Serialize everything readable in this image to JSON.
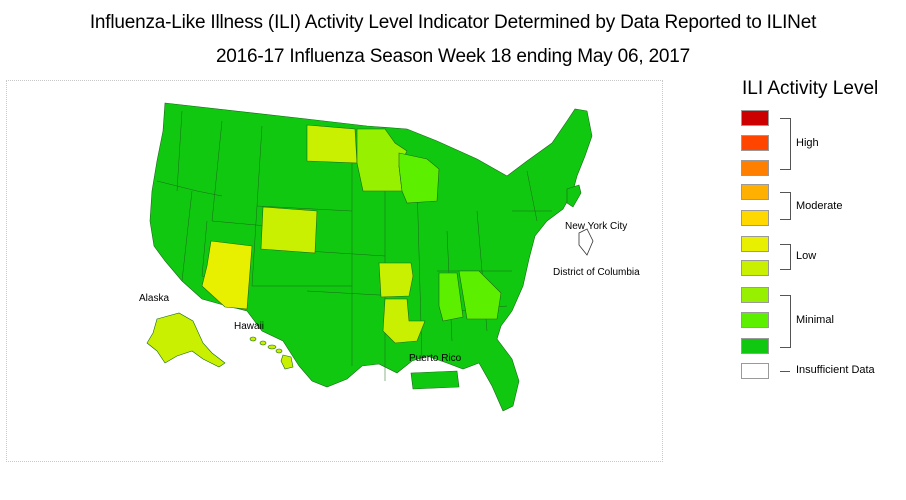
{
  "title_line1": "Influenza-Like Illness (ILI) Activity Level Indicator Determined by Data Reported to ILINet",
  "title_line2": "2016-17 Influenza Season Week 18 ending May 06, 2017",
  "legend": {
    "title": "ILI Activity Level",
    "levels": [
      {
        "level": 10,
        "color": "#cc0000"
      },
      {
        "level": 9,
        "color": "#ff4500"
      },
      {
        "level": 8,
        "color": "#ff8000"
      },
      {
        "level": 7,
        "color": "#ffb000"
      },
      {
        "level": 6,
        "color": "#ffd800"
      },
      {
        "level": 5,
        "color": "#e8f000"
      },
      {
        "level": 4,
        "color": "#c8f000"
      },
      {
        "level": 3,
        "color": "#96f000"
      },
      {
        "level": 2,
        "color": "#5cf000"
      },
      {
        "level": 1,
        "color": "#10c810"
      },
      {
        "level": 0,
        "color": "#ffffff"
      }
    ],
    "groups": {
      "high": "High",
      "moderate": "Moderate",
      "low": "Low",
      "minimal": "Minimal",
      "insufficient": "Insufficient Data"
    }
  },
  "region_labels": {
    "new_york_city": "New York City",
    "district_of_columbia": "District of Columbia",
    "alaska": "Alaska",
    "hawaii": "Hawaii",
    "puerto_rico": "Puerto Rico"
  },
  "state_levels": {
    "Arizona": 5,
    "Colorado": 4,
    "North Dakota": 4,
    "Arkansas": 4,
    "Louisiana": 4,
    "Alaska": 4,
    "Hawaii": 4,
    "Minnesota": 3,
    "Wisconsin": 2,
    "Alabama": 2,
    "Georgia": 2,
    "District of Columbia": 0,
    "all_other_states": 1,
    "Puerto Rico": 1,
    "New York City": 1
  }
}
